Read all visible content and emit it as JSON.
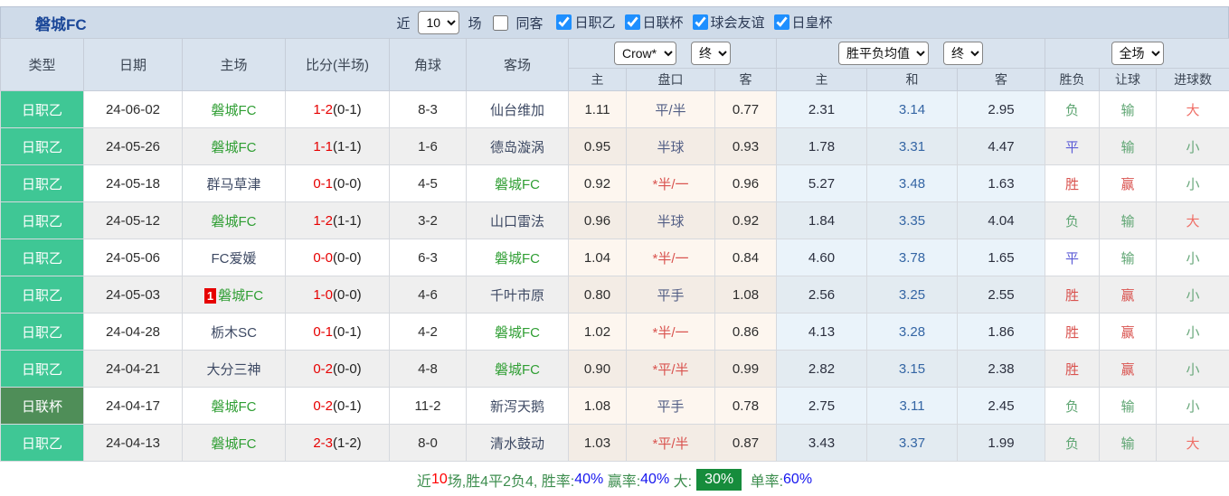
{
  "title": "磐城FC",
  "filter": {
    "near_label": "近",
    "count_value": "10",
    "games_label": "场",
    "same_away": {
      "label": "同客",
      "checked": false
    },
    "leagues": [
      {
        "label": "日职乙",
        "checked": true
      },
      {
        "label": "日联杯",
        "checked": true
      },
      {
        "label": "球会友谊",
        "checked": true
      },
      {
        "label": "日皇杯",
        "checked": true
      }
    ]
  },
  "header": {
    "type": "类型",
    "date": "日期",
    "home": "主场",
    "score": "比分(半场)",
    "corner": "角球",
    "away": "客场",
    "crow_company_select": "Crow*",
    "crow_time_select": "终",
    "crow_sub": [
      "主",
      "盘口",
      "客"
    ],
    "avg_select": "胜平负均值",
    "avg_time_select": "终",
    "avg_sub": [
      "主",
      "和",
      "客"
    ],
    "scope_select": "全场",
    "result_sub": [
      "胜负",
      "让球",
      "进球数"
    ]
  },
  "rows": [
    {
      "league": "日职乙",
      "league_type": "j2",
      "date": "24-06-02",
      "home": "磐城FC",
      "home_self": true,
      "home_redcard": "",
      "score": "1-2",
      "half": "(0-1)",
      "corner": "8-3",
      "away": "仙台维加",
      "away_self": false,
      "crow_home": "1.11",
      "handicap": "平/半",
      "crow_away": "0.77",
      "avg_home": "2.31",
      "avg_draw": "3.14",
      "avg_away": "2.95",
      "result": "负",
      "handicap_result": "输",
      "goals": "大"
    },
    {
      "league": "日职乙",
      "league_type": "j2",
      "date": "24-05-26",
      "home": "磐城FC",
      "home_self": true,
      "home_redcard": "",
      "score": "1-1",
      "half": "(1-1)",
      "corner": "1-6",
      "away": "德岛漩涡",
      "away_self": false,
      "crow_home": "0.95",
      "handicap": "半球",
      "crow_away": "0.93",
      "avg_home": "1.78",
      "avg_draw": "3.31",
      "avg_away": "4.47",
      "result": "平",
      "handicap_result": "输",
      "goals": "小"
    },
    {
      "league": "日职乙",
      "league_type": "j2",
      "date": "24-05-18",
      "home": "群马草津",
      "home_self": false,
      "home_redcard": "",
      "score": "0-1",
      "half": "(0-0)",
      "corner": "4-5",
      "away": "磐城FC",
      "away_self": true,
      "crow_home": "0.92",
      "handicap": "*半/一",
      "crow_away": "0.96",
      "avg_home": "5.27",
      "avg_draw": "3.48",
      "avg_away": "1.63",
      "result": "胜",
      "handicap_result": "赢",
      "goals": "小"
    },
    {
      "league": "日职乙",
      "league_type": "j2",
      "date": "24-05-12",
      "home": "磐城FC",
      "home_self": true,
      "home_redcard": "",
      "score": "1-2",
      "half": "(1-1)",
      "corner": "3-2",
      "away": "山口雷法",
      "away_self": false,
      "crow_home": "0.96",
      "handicap": "半球",
      "crow_away": "0.92",
      "avg_home": "1.84",
      "avg_draw": "3.35",
      "avg_away": "4.04",
      "result": "负",
      "handicap_result": "输",
      "goals": "大"
    },
    {
      "league": "日职乙",
      "league_type": "j2",
      "date": "24-05-06",
      "home": "FC爱媛",
      "home_self": false,
      "home_redcard": "",
      "score": "0-0",
      "half": "(0-0)",
      "corner": "6-3",
      "away": "磐城FC",
      "away_self": true,
      "crow_home": "1.04",
      "handicap": "*半/一",
      "crow_away": "0.84",
      "avg_home": "4.60",
      "avg_draw": "3.78",
      "avg_away": "1.65",
      "result": "平",
      "handicap_result": "输",
      "goals": "小"
    },
    {
      "league": "日职乙",
      "league_type": "j2",
      "date": "24-05-03",
      "home": "磐城FC",
      "home_self": true,
      "home_redcard": "1",
      "score": "1-0",
      "half": "(0-0)",
      "corner": "4-6",
      "away": "千叶市原",
      "away_self": false,
      "crow_home": "0.80",
      "handicap": "平手",
      "crow_away": "1.08",
      "avg_home": "2.56",
      "avg_draw": "3.25",
      "avg_away": "2.55",
      "result": "胜",
      "handicap_result": "赢",
      "goals": "小"
    },
    {
      "league": "日职乙",
      "league_type": "j2",
      "date": "24-04-28",
      "home": "栃木SC",
      "home_self": false,
      "home_redcard": "",
      "score": "0-1",
      "half": "(0-1)",
      "corner": "4-2",
      "away": "磐城FC",
      "away_self": true,
      "crow_home": "1.02",
      "handicap": "*半/一",
      "crow_away": "0.86",
      "avg_home": "4.13",
      "avg_draw": "3.28",
      "avg_away": "1.86",
      "result": "胜",
      "handicap_result": "赢",
      "goals": "小"
    },
    {
      "league": "日职乙",
      "league_type": "j2",
      "date": "24-04-21",
      "home": "大分三神",
      "home_self": false,
      "home_redcard": "",
      "score": "0-2",
      "half": "(0-0)",
      "corner": "4-8",
      "away": "磐城FC",
      "away_self": true,
      "crow_home": "0.90",
      "handicap": "*平/半",
      "crow_away": "0.99",
      "avg_home": "2.82",
      "avg_draw": "3.15",
      "avg_away": "2.38",
      "result": "胜",
      "handicap_result": "赢",
      "goals": "小"
    },
    {
      "league": "日联杯",
      "league_type": "cup",
      "date": "24-04-17",
      "home": "磐城FC",
      "home_self": true,
      "home_redcard": "",
      "score": "0-2",
      "half": "(0-1)",
      "corner": "11-2",
      "away": "新泻天鹅",
      "away_self": false,
      "crow_home": "1.08",
      "handicap": "平手",
      "crow_away": "0.78",
      "avg_home": "2.75",
      "avg_draw": "3.11",
      "avg_away": "2.45",
      "result": "负",
      "handicap_result": "输",
      "goals": "小"
    },
    {
      "league": "日职乙",
      "league_type": "j2",
      "date": "24-04-13",
      "home": "磐城FC",
      "home_self": true,
      "home_redcard": "",
      "score": "2-3",
      "half": "(1-2)",
      "corner": "8-0",
      "away": "清水鼓动",
      "away_self": false,
      "crow_home": "1.03",
      "handicap": "*平/半",
      "crow_away": "0.87",
      "avg_home": "3.43",
      "avg_draw": "3.37",
      "avg_away": "1.99",
      "result": "负",
      "handicap_result": "输",
      "goals": "大"
    }
  ],
  "footer": {
    "segments": [
      {
        "text": "近",
        "style": "green"
      },
      {
        "text": "10",
        "style": "red"
      },
      {
        "text": "场,胜4平2负4, 胜率:",
        "style": "green"
      },
      {
        "text": "40%",
        "style": "blue"
      },
      {
        "text": " 赢率:",
        "style": "green"
      },
      {
        "text": "40%",
        "style": "blue"
      },
      {
        "text": " 大:",
        "style": "green"
      },
      {
        "text": "30%",
        "style": "badge"
      },
      {
        "text": " 单率:",
        "style": "green"
      },
      {
        "text": "60%",
        "style": "blue"
      }
    ]
  },
  "colors": {
    "league_j2": "#3fc795",
    "league_cup": "#4f8e58",
    "score_red": "#e60000",
    "team_green": "#2f9e33",
    "odds_blue": "#3465a4",
    "badge_green": "#168c3c",
    "checkbox_blue": "#1e8fff"
  }
}
